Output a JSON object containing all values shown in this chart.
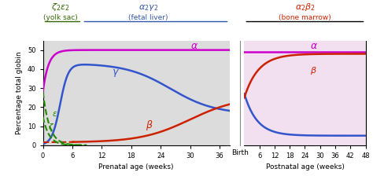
{
  "ylabel": "Percentage total globin",
  "xlabel_pre": "Prenatal age (weeks)",
  "xlabel_post": "Postnatal age (weeks)",
  "xlabel_birth": "Birth",
  "prenatal_ticks": [
    0,
    6,
    12,
    18,
    24,
    30,
    36
  ],
  "postnatal_ticks": [
    6,
    12,
    18,
    24,
    30,
    36,
    42,
    48
  ],
  "ylim": [
    0,
    55
  ],
  "yticks": [
    0,
    10,
    20,
    30,
    40,
    50
  ],
  "bg_left_color": "#dcdcdc",
  "bg_right_color": "#f2dff0",
  "alpha_color": "#cc00cc",
  "gamma_color": "#3355cc",
  "beta_color": "#cc2200",
  "zeta_color": "#228800",
  "epsilon_color": "#228800",
  "title_left_color": "#336600",
  "title_mid_color": "#3355aa",
  "title_right_color": "#cc2200",
  "prenatal_xlim": 38,
  "postnatal_xlim": 48
}
